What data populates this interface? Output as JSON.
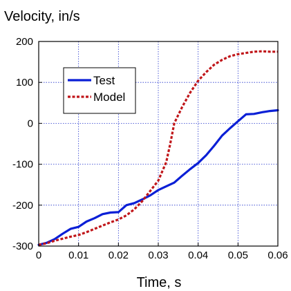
{
  "chart_data": {
    "type": "line",
    "title": "",
    "ylabel": "Velocity, in/s",
    "xlabel": "Time, s",
    "xlim": [
      0,
      0.06
    ],
    "ylim": [
      -300,
      200
    ],
    "x_ticks": [
      0,
      0.01,
      0.02,
      0.03,
      0.04,
      0.05,
      0.06
    ],
    "x_tick_labels": [
      "0",
      "0.01",
      "0.02",
      "0.03",
      "0.04",
      "0.05",
      "0.06"
    ],
    "y_ticks": [
      -300,
      -200,
      -100,
      0,
      100,
      200
    ],
    "y_tick_labels": [
      "-300",
      "-200",
      "-100",
      "0",
      "100",
      "200"
    ],
    "grid": true,
    "legend_position": "upper-left",
    "series": [
      {
        "name": "Test",
        "color": "#0a1fd6",
        "style": "solid",
        "x": [
          0,
          0.002,
          0.004,
          0.006,
          0.008,
          0.01,
          0.012,
          0.014,
          0.016,
          0.018,
          0.02,
          0.022,
          0.024,
          0.026,
          0.028,
          0.03,
          0.032,
          0.034,
          0.036,
          0.038,
          0.04,
          0.042,
          0.044,
          0.046,
          0.048,
          0.05,
          0.052,
          0.054,
          0.056,
          0.058,
          0.06
        ],
        "y": [
          -297,
          -292,
          -283,
          -270,
          -258,
          -253,
          -240,
          -232,
          -222,
          -218,
          -217,
          -200,
          -195,
          -186,
          -176,
          -163,
          -154,
          -145,
          -128,
          -112,
          -97,
          -78,
          -55,
          -30,
          -12,
          5,
          22,
          23,
          27,
          30,
          32
        ]
      },
      {
        "name": "Model",
        "color": "#c0161a",
        "style": "dashed",
        "x": [
          0,
          0.002,
          0.004,
          0.006,
          0.008,
          0.01,
          0.012,
          0.014,
          0.016,
          0.018,
          0.02,
          0.022,
          0.024,
          0.026,
          0.028,
          0.03,
          0.032,
          0.033,
          0.034,
          0.035,
          0.036,
          0.038,
          0.04,
          0.042,
          0.044,
          0.046,
          0.048,
          0.05,
          0.052,
          0.054,
          0.056,
          0.058,
          0.06
        ],
        "y": [
          -297,
          -293,
          -287,
          -282,
          -277,
          -273,
          -266,
          -258,
          -250,
          -242,
          -235,
          -225,
          -210,
          -190,
          -165,
          -140,
          -95,
          -50,
          0,
          20,
          40,
          75,
          104,
          125,
          143,
          155,
          164,
          169,
          172,
          175,
          176,
          175,
          175
        ]
      }
    ]
  }
}
